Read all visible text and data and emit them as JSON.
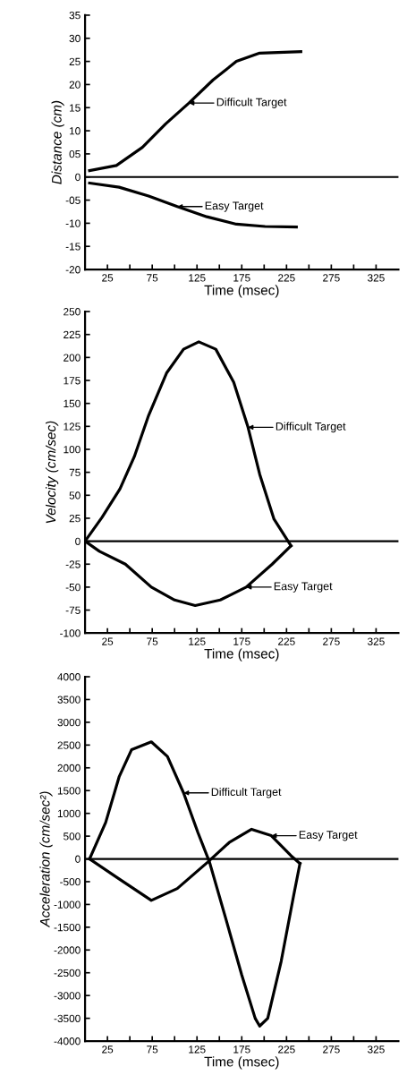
{
  "chart_data": [
    {
      "type": "line",
      "xlabel": "Time (msec)",
      "ylabel": "Distance (cm)",
      "xlim": [
        0,
        350
      ],
      "ylim": [
        -20,
        35
      ],
      "xticks": [
        25,
        {
          "value": 50,
          "label": null
        },
        75,
        {
          "value": 100,
          "label": null
        },
        125,
        {
          "value": 150,
          "label": null
        },
        175,
        {
          "value": 200,
          "label": null
        },
        225,
        {
          "value": 250,
          "label": null
        },
        275,
        {
          "value": 300,
          "label": null
        },
        325
      ],
      "yticks": [
        -20,
        -15,
        -10,
        {
          "value": -5,
          "label": "-05"
        },
        0,
        {
          "value": 5,
          "label": "05"
        },
        10,
        15,
        20,
        25,
        30,
        35
      ],
      "grid": false,
      "marker": "none",
      "line_style": "solid",
      "ref_lines": [
        {
          "axis": "y",
          "value": 0,
          "color": "#000000"
        }
      ],
      "series": [
        {
          "color": "#000000",
          "x": [
            5,
            35,
            64,
            90,
            116,
            143,
            169,
            195,
            241
          ],
          "values": [
            1.4,
            2.5,
            6.4,
            11.5,
            16,
            21,
            25,
            26.8,
            27.1
          ]
        },
        {
          "color": "#000000",
          "x": [
            5,
            38,
            71,
            103,
            136,
            169,
            201,
            236
          ],
          "values": [
            -1.3,
            -2.2,
            -4.1,
            -6.4,
            -8.6,
            -10.2,
            -10.7,
            -10.8
          ]
        }
      ],
      "annotations": [
        {
          "text": "Difficult Target",
          "x": 116,
          "y": 16
        },
        {
          "text": "Easy Target",
          "x": 103,
          "y": -6.4
        }
      ]
    },
    {
      "type": "line",
      "xlabel": "Time (msec)",
      "ylabel": "Velocity (cm/sec)",
      "xlim": [
        0,
        350
      ],
      "ylim": [
        -100,
        250
      ],
      "xticks": [
        25,
        {
          "value": 50,
          "label": null
        },
        75,
        {
          "value": 100,
          "label": null
        },
        125,
        {
          "value": 150,
          "label": null
        },
        175,
        {
          "value": 200,
          "label": null
        },
        225,
        {
          "value": 250,
          "label": null
        },
        275,
        {
          "value": 300,
          "label": null
        },
        325
      ],
      "yticks": [
        -100,
        -75,
        -50,
        -25,
        0,
        25,
        50,
        75,
        100,
        125,
        150,
        175,
        200,
        225,
        250
      ],
      "grid": false,
      "marker": "none",
      "line_style": "solid",
      "ref_lines": [
        {
          "axis": "y",
          "value": 0,
          "color": "#000000"
        }
      ],
      "series": [
        {
          "color": "#000000",
          "x": [
            0,
            19,
            39,
            55,
            71,
            91,
            110,
            127,
            146,
            166,
            182,
            195,
            211,
            230
          ],
          "values": [
            0,
            26,
            57,
            92,
            137,
            183,
            209,
            217,
            209,
            173,
            124,
            73,
            24,
            -5
          ]
        },
        {
          "color": "#000000",
          "x": [
            0,
            16,
            45,
            74,
            100,
            123,
            151,
            180,
            209,
            230
          ],
          "values": [
            0,
            -11,
            -25,
            -50,
            -64,
            -70,
            -64,
            -50,
            -25,
            -5
          ]
        }
      ],
      "annotations": [
        {
          "text": "Difficult Target",
          "x": 182,
          "y": 124
        },
        {
          "text": "Easy Target",
          "x": 180,
          "y": -50
        }
      ]
    },
    {
      "type": "line",
      "xlabel": "Time (msec)",
      "ylabel": "Acceleration (cm/sec²)",
      "xlim": [
        0,
        350
      ],
      "ylim": [
        -4000,
        4000
      ],
      "xticks": [
        25,
        {
          "value": 50,
          "label": null
        },
        75,
        {
          "value": 100,
          "label": null
        },
        125,
        {
          "value": 150,
          "label": null
        },
        175,
        {
          "value": 200,
          "label": null
        },
        225,
        {
          "value": 250,
          "label": null
        },
        275,
        {
          "value": 300,
          "label": null
        },
        325
      ],
      "yticks": [
        -4000,
        -3500,
        -3000,
        -2500,
        -2000,
        -1500,
        -1000,
        -500,
        0,
        500,
        1000,
        1500,
        2000,
        2500,
        3000,
        3500,
        4000
      ],
      "grid": false,
      "marker": "none",
      "line_style": "solid",
      "ref_lines": [
        {
          "axis": "y",
          "value": 0,
          "color": "#000000"
        }
      ],
      "series": [
        {
          "color": "#000000",
          "x": [
            5,
            23,
            38,
            52,
            74,
            92,
            110,
            126,
            139,
            157,
            175,
            190,
            195,
            204,
            219,
            233,
            240
          ],
          "values": [
            0,
            800,
            1800,
            2400,
            2570,
            2250,
            1450,
            580,
            -70,
            -1300,
            -2550,
            -3500,
            -3670,
            -3500,
            -2250,
            -800,
            -100
          ]
        },
        {
          "color": "#000000",
          "x": [
            5,
            38,
            74,
            103,
            137,
            161,
            186,
            208,
            230,
            240
          ],
          "values": [
            0,
            -440,
            -910,
            -650,
            -70,
            360,
            650,
            510,
            70,
            -100
          ]
        }
      ],
      "annotations": [
        {
          "text": "Difficult Target",
          "x": 110,
          "y": 1450
        },
        {
          "text": "Easy Target",
          "x": 208,
          "y": 510
        }
      ]
    }
  ]
}
